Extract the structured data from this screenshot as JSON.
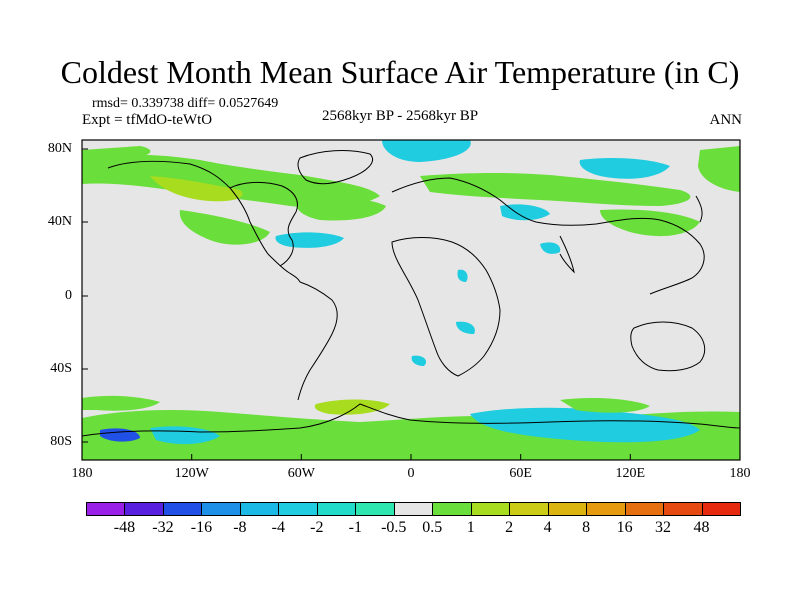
{
  "title": "Coldest Month Mean Surface Air Temperature (in C)",
  "stats": {
    "rmsd_diff": "rmsd= 0.339738 diff= 0.0527649",
    "expt": "Expt = tfMdO-teWtO"
  },
  "period": "2568kyr BP - 2568kyr BP",
  "season": "ANN",
  "map": {
    "projection": "cylindrical-equidistant",
    "lon_range": [
      -180,
      180
    ],
    "lat_range": [
      -90,
      90
    ],
    "ocean_fill": "#e6e6e6",
    "coastline_color": "#000000",
    "x_ticks": [
      "180",
      "120W",
      "60W",
      "0",
      "60E",
      "120E",
      "180"
    ],
    "y_ticks": [
      "80N",
      "40N",
      "0",
      "40S",
      "80S"
    ]
  },
  "colorbar": {
    "labels": [
      "-48",
      "-32",
      "-16",
      "-8",
      "-4",
      "-2",
      "-1",
      "-0.5",
      "0.5",
      "1",
      "2",
      "4",
      "8",
      "16",
      "32",
      "48"
    ],
    "colors": [
      "#9a20e8",
      "#5a20e0",
      "#2050e6",
      "#1e90e8",
      "#1cb8e6",
      "#20cce0",
      "#20dcc8",
      "#2ee6b0",
      "#e6e6e6",
      "#6ade3a",
      "#a8dc1e",
      "#cccc16",
      "#dcb410",
      "#e69a10",
      "#e67010",
      "#e64a10",
      "#e62a10"
    ]
  }
}
